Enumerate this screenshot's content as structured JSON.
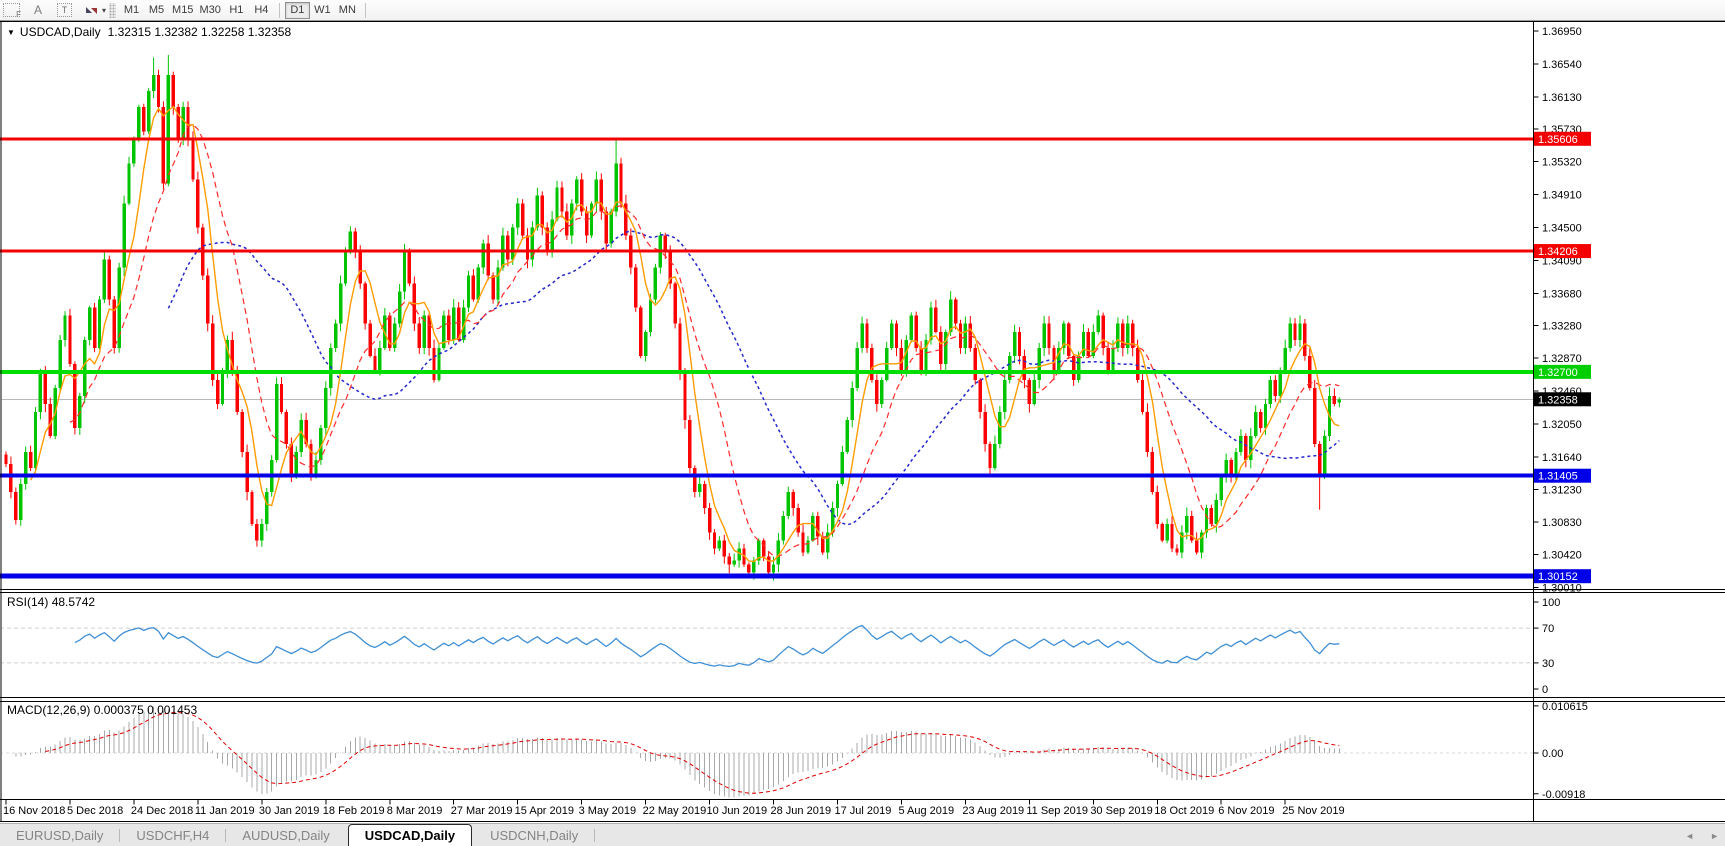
{
  "toolbar": {
    "tool_icons": [
      {
        "name": "fibonacci-tool",
        "glyph": "F"
      },
      {
        "name": "text-tool",
        "glyph": "A"
      },
      {
        "name": "text-label-tool",
        "glyph": "T"
      },
      {
        "name": "arrows-tool",
        "glyph": ""
      }
    ],
    "timeframes": [
      "M1",
      "M5",
      "M15",
      "M30",
      "H1",
      "H4",
      "D1",
      "W1",
      "MN"
    ],
    "active_timeframe": "D1"
  },
  "chart": {
    "symbol_title": "USDCAD,Daily",
    "ohlc_display": "1.32315 1.32382 1.32258 1.32358",
    "current_price": "1.32358"
  },
  "rsi_panel": {
    "label": "RSI(14)",
    "value": "48.5742",
    "ticks": [
      "100",
      "70",
      "30",
      "0"
    ],
    "levels": [
      70,
      30
    ]
  },
  "macd_panel": {
    "label": "MACD(12,26,9)",
    "values": "0.000375 0.001453",
    "ticks": [
      {
        "v": 0.010615,
        "t": "0.010615"
      },
      {
        "v": 0,
        "t": "0.00"
      },
      {
        "v": -0.00918,
        "t": "-0.00918"
      }
    ]
  },
  "tabbar": {
    "tabs": [
      "EURUSD,Daily",
      "USDCHF,H4",
      "AUDUSD,Daily",
      "USDCAD,Daily",
      "USDCNH,Daily"
    ],
    "active": "USDCAD,Daily"
  },
  "chart_data": {
    "type": "candlestick",
    "symbol": "USDCAD",
    "timeframe": "Daily",
    "candles_per_tick": 13,
    "y_axis": {
      "ticks": [
        "1.36950",
        "1.36540",
        "1.36130",
        "1.35730",
        "1.35320",
        "1.34910",
        "1.34500",
        "1.34090",
        "1.33680",
        "1.33280",
        "1.32870",
        "1.32460",
        "1.32050",
        "1.31640",
        "1.31230",
        "1.30830",
        "1.30420",
        "1.30010"
      ],
      "top_price": 1.3695,
      "bottom_price": 1.3001
    },
    "x_axis": {
      "labels": [
        "16 Nov 2018",
        "5 Dec 2018",
        "24 Dec 2018",
        "11 Jan 2019",
        "30 Jan 2019",
        "18 Feb 2019",
        "8 Mar 2019",
        "27 Mar 2019",
        "15 Apr 2019",
        "3 May 2019",
        "22 May 2019",
        "10 Jun 2019",
        "28 Jun 2019",
        "17 Jul 2019",
        "5 Aug 2019",
        "23 Aug 2019",
        "11 Sep 2019",
        "30 Sep 2019",
        "18 Oct 2019",
        "6 Nov 2019",
        "25 Nov 2019"
      ]
    },
    "h_lines": [
      {
        "price": 1.35606,
        "label": "1.35606",
        "color": "#f40000",
        "width": 3
      },
      {
        "price": 1.34206,
        "label": "1.34206",
        "color": "#f40000",
        "width": 3
      },
      {
        "price": 1.327,
        "label": "1.32700",
        "color": "#00dd00",
        "width": 4
      },
      {
        "price": 1.31405,
        "label": "1.31405",
        "color": "#0000e8",
        "width": 4
      },
      {
        "price": 1.30152,
        "label": "1.30152",
        "color": "#0000e8",
        "width": 5
      }
    ],
    "current_price_line": {
      "price": 1.32358,
      "label": "1.32358",
      "line_color": "#b9b9b9",
      "badge_color": "#000000"
    },
    "colors": {
      "up": "#00c400",
      "down": "#fe0000",
      "ma_fast": "#ff9c00",
      "ma_mid": "#ff2a2a",
      "ma_slow": "#2428cf",
      "rsi": "#3f8fd6",
      "rsi_level": "#cfcfcf",
      "macd_hist": "#a8a8a8",
      "macd_signal": "#e00000"
    },
    "ma_periods": {
      "fast": 6,
      "mid": 14,
      "slow": 34
    },
    "closes": [
      1.3155,
      1.312,
      1.3085,
      1.313,
      1.317,
      1.315,
      1.322,
      1.327,
      1.323,
      1.319,
      1.325,
      1.331,
      1.334,
      1.328,
      1.32,
      1.324,
      1.331,
      1.335,
      1.33,
      1.336,
      1.341,
      1.336,
      1.33,
      1.34,
      1.348,
      1.353,
      1.356,
      1.36,
      1.357,
      1.362,
      1.364,
      1.36,
      1.3505,
      1.364,
      1.36,
      1.356,
      1.36,
      1.356,
      1.351,
      1.345,
      1.339,
      1.333,
      1.326,
      1.323,
      1.327,
      1.331,
      1.327,
      1.322,
      1.317,
      1.312,
      1.308,
      1.306,
      1.308,
      1.312,
      1.316,
      1.3255,
      1.322,
      1.318,
      1.314,
      1.317,
      1.321,
      1.318,
      1.314,
      1.316,
      1.32,
      1.325,
      1.33,
      1.333,
      1.338,
      1.342,
      1.3445,
      1.342,
      1.338,
      1.333,
      1.329,
      1.327,
      1.33,
      1.334,
      1.33,
      1.333,
      1.337,
      1.342,
      1.338,
      1.333,
      1.33,
      1.334,
      1.33,
      1.326,
      1.33,
      1.334,
      1.331,
      1.335,
      1.331,
      1.335,
      1.339,
      1.336,
      1.34,
      1.343,
      1.339,
      1.336,
      1.34,
      1.344,
      1.341,
      1.345,
      1.348,
      1.344,
      1.341,
      1.345,
      1.349,
      1.345,
      1.342,
      1.346,
      1.35,
      1.347,
      1.344,
      1.348,
      1.351,
      1.347,
      1.344,
      1.348,
      1.351,
      1.347,
      1.343,
      1.347,
      1.353,
      1.348,
      1.344,
      1.34,
      1.335,
      1.329,
      1.332,
      1.336,
      1.34,
      1.344,
      1.342,
      1.338,
      1.333,
      1.327,
      1.321,
      1.315,
      1.312,
      1.313,
      1.31,
      1.307,
      1.305,
      1.306,
      1.304,
      1.303,
      1.3035,
      1.305,
      1.303,
      1.302,
      1.3035,
      1.306,
      1.304,
      1.302,
      1.303,
      1.306,
      1.309,
      1.312,
      1.31,
      1.307,
      1.3045,
      1.306,
      1.309,
      1.3065,
      1.3045,
      1.307,
      1.31,
      1.313,
      1.317,
      1.321,
      1.325,
      1.33,
      1.333,
      1.33,
      1.326,
      1.323,
      1.326,
      1.33,
      1.333,
      1.33,
      1.327,
      1.331,
      1.334,
      1.33,
      1.327,
      1.331,
      1.335,
      1.332,
      1.328,
      1.332,
      1.336,
      1.333,
      1.33,
      1.333,
      1.33,
      1.326,
      1.322,
      1.318,
      1.315,
      1.318,
      1.322,
      1.326,
      1.329,
      1.332,
      1.329,
      1.326,
      1.323,
      1.326,
      1.33,
      1.333,
      1.33,
      1.327,
      1.33,
      1.333,
      1.329,
      1.326,
      1.329,
      1.332,
      1.329,
      1.332,
      1.334,
      1.33,
      1.327,
      1.33,
      1.333,
      1.33,
      1.333,
      1.33,
      1.326,
      1.322,
      1.317,
      1.312,
      1.308,
      1.306,
      1.308,
      1.305,
      1.3045,
      1.307,
      1.309,
      1.306,
      1.3045,
      1.307,
      1.31,
      1.308,
      1.311,
      1.314,
      1.316,
      1.314,
      1.317,
      1.319,
      1.316,
      1.319,
      1.322,
      1.32,
      1.323,
      1.326,
      1.324,
      1.327,
      1.33,
      1.333,
      1.331,
      1.333,
      1.329,
      1.325,
      1.318,
      1.314,
      1.319,
      1.324,
      1.323,
      1.32358
    ],
    "overrides": [
      {
        "i": 20,
        "high": 1.3421
      },
      {
        "i": 30,
        "high": 1.3662
      },
      {
        "i": 33,
        "high": 1.3665
      },
      {
        "i": 124,
        "high": 1.3561
      },
      {
        "i": 151,
        "low": 1.3016
      },
      {
        "i": 155,
        "low": 1.3015
      },
      {
        "i": 238,
        "low": 1.3041
      },
      {
        "i": 267,
        "low": 1.3098
      },
      {
        "i": 271,
        "open": 1.32315,
        "high": 1.32382,
        "low": 1.32258,
        "close": 1.32358
      }
    ]
  }
}
